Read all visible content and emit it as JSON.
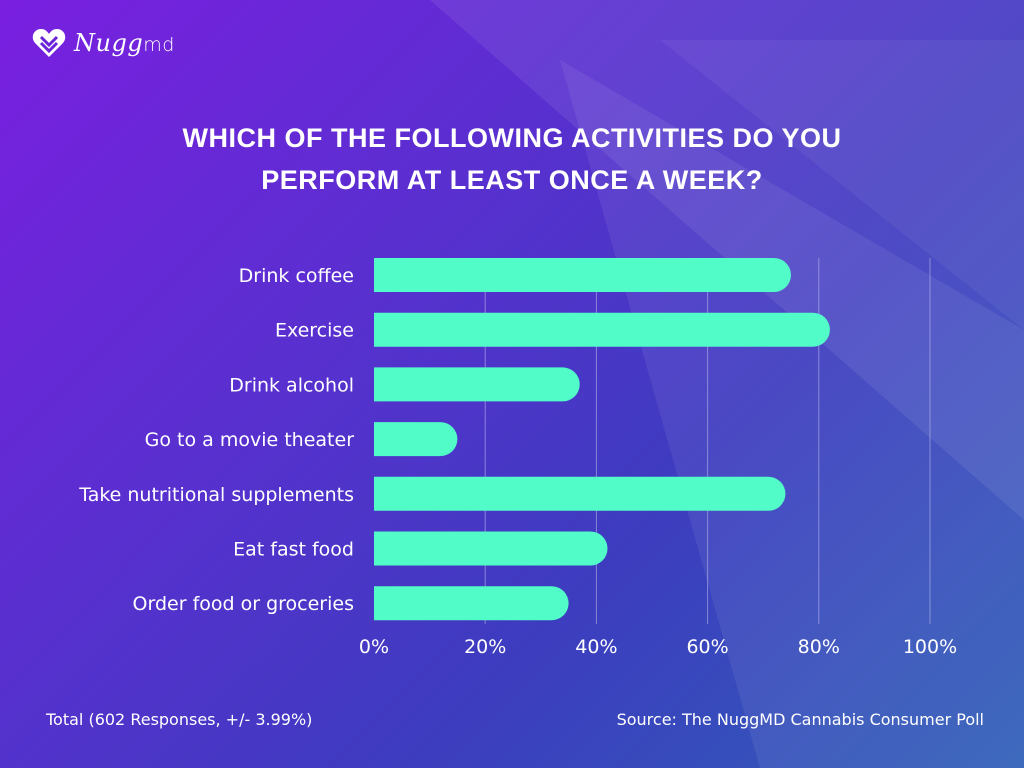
{
  "brand": {
    "name": "Nugg",
    "suffix": "md"
  },
  "title_line1": "WHICH OF THE FOLLOWING ACTIVITIES DO YOU",
  "title_line2": "PERFORM AT LEAST ONCE A WEEK?",
  "footer": {
    "total": "Total (602 Responses, +/- 3.99%)",
    "source": "Source: The NuggMD Cannabis Consumer Poll"
  },
  "colors": {
    "bar": "#52fcc8",
    "grid": "#b9b6e8"
  },
  "chart_data": {
    "type": "bar",
    "orientation": "horizontal",
    "categories": [
      "Drink coffee",
      "Exercise",
      "Drink alcohol",
      "Go to a movie theater",
      "Take nutritional supplements",
      "Eat fast food",
      "Order food or groceries"
    ],
    "values": [
      75,
      82,
      37,
      15,
      74,
      42,
      35
    ],
    "xlim": [
      0,
      100
    ],
    "xticks": [
      "0%",
      "20%",
      "40%",
      "60%",
      "80%",
      "100%"
    ],
    "grid": true
  }
}
